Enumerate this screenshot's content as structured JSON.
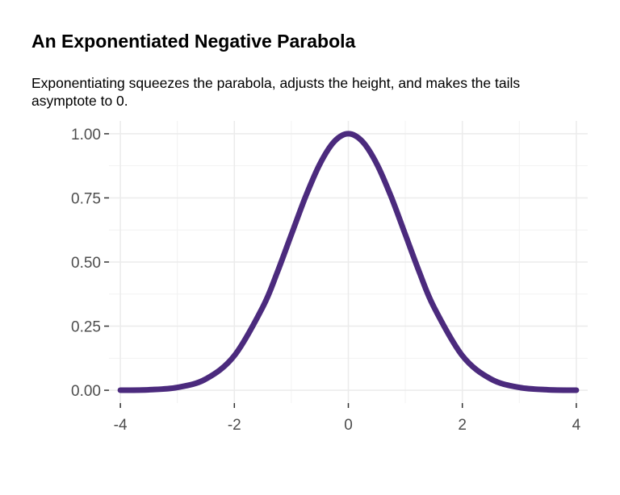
{
  "chart_data": {
    "type": "line",
    "title": "An Exponentiated Negative Parabola",
    "subtitle": "Exponentiating squeezes the parabola, adjusts the height, and makes the tails asymptote to 0.",
    "xlabel": "",
    "ylabel": "",
    "xlim": [
      -4.2,
      4.2
    ],
    "ylim": [
      -0.05,
      1.05
    ],
    "x_ticks": [
      -4,
      -2,
      0,
      2,
      4
    ],
    "y_ticks": [
      0,
      0.25,
      0.5,
      0.75,
      1
    ],
    "x_tick_labels": [
      "-4",
      "-2",
      "0",
      "2",
      "4"
    ],
    "y_tick_labels": [
      "0.00",
      "0.25",
      "0.50",
      "0.75",
      "1.00"
    ],
    "grid": true,
    "legend": "none",
    "line_color": "#4b2a7d",
    "series": [
      {
        "x": [
          -4,
          -3.5,
          -3,
          -2.5,
          -2,
          -1.5,
          -1.25,
          -1,
          -0.75,
          -0.5,
          -0.25,
          0,
          0.25,
          0.5,
          0.75,
          1,
          1.25,
          1.5,
          2,
          2.5,
          3,
          3.5,
          4
        ],
        "y": [
          0.0003,
          0.002,
          0.011,
          0.044,
          0.135,
          0.325,
          0.458,
          0.607,
          0.755,
          0.882,
          0.969,
          1.0,
          0.969,
          0.882,
          0.755,
          0.607,
          0.458,
          0.325,
          0.135,
          0.044,
          0.011,
          0.002,
          0.0003
        ]
      }
    ]
  }
}
